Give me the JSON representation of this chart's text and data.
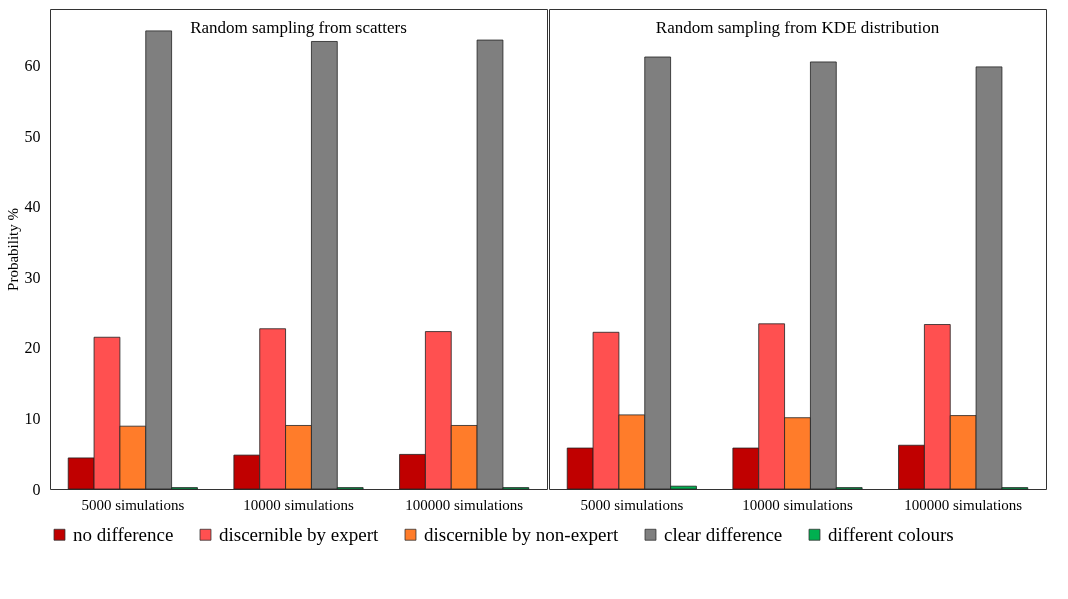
{
  "chart_data": [
    {
      "type": "bar",
      "title": "Random sampling from scatters",
      "ylabel": "Probability %",
      "categories": [
        "5000 simulations",
        "10000 simulations",
        "100000 simulations"
      ],
      "ylim": [
        0,
        68
      ],
      "yticks": [
        0,
        10,
        20,
        30,
        40,
        50,
        60
      ],
      "legend": "bottom",
      "series": [
        {
          "name": "no difference",
          "color": "#c00000",
          "values": [
            4.4,
            4.8,
            4.9
          ]
        },
        {
          "name": "discernible by expert",
          "color": "#ff5050",
          "values": [
            21.5,
            22.7,
            22.3
          ]
        },
        {
          "name": "discernible by non-expert",
          "color": "#ff7c2a",
          "values": [
            8.9,
            9.0,
            9.0
          ]
        },
        {
          "name": "clear difference",
          "color": "#7f7f7f",
          "values": [
            64.9,
            63.4,
            63.6
          ]
        },
        {
          "name": "different colours",
          "color": "#00b050",
          "values": [
            0.2,
            0.2,
            0.2
          ]
        }
      ]
    },
    {
      "type": "bar",
      "title": "Random sampling from KDE distribution",
      "categories": [
        "5000 simulations",
        "10000 simulations",
        "100000 simulations"
      ],
      "ylim": [
        0,
        68
      ],
      "yticks": [
        0,
        10,
        20,
        30,
        40,
        50,
        60
      ],
      "tick_labels": "x",
      "legend": "bottom",
      "series": [
        {
          "name": "no difference",
          "color": "#c00000",
          "values": [
            5.8,
            5.8,
            6.2
          ]
        },
        {
          "name": "discernible by expert",
          "color": "#ff5050",
          "values": [
            22.2,
            23.4,
            23.3
          ]
        },
        {
          "name": "discernible by non-expert",
          "color": "#ff7c2a",
          "values": [
            10.5,
            10.1,
            10.4
          ]
        },
        {
          "name": "clear difference",
          "color": "#7f7f7f",
          "values": [
            61.2,
            60.5,
            59.8
          ]
        },
        {
          "name": "different colours",
          "color": "#00b050",
          "values": [
            0.4,
            0.2,
            0.2
          ]
        }
      ]
    }
  ]
}
